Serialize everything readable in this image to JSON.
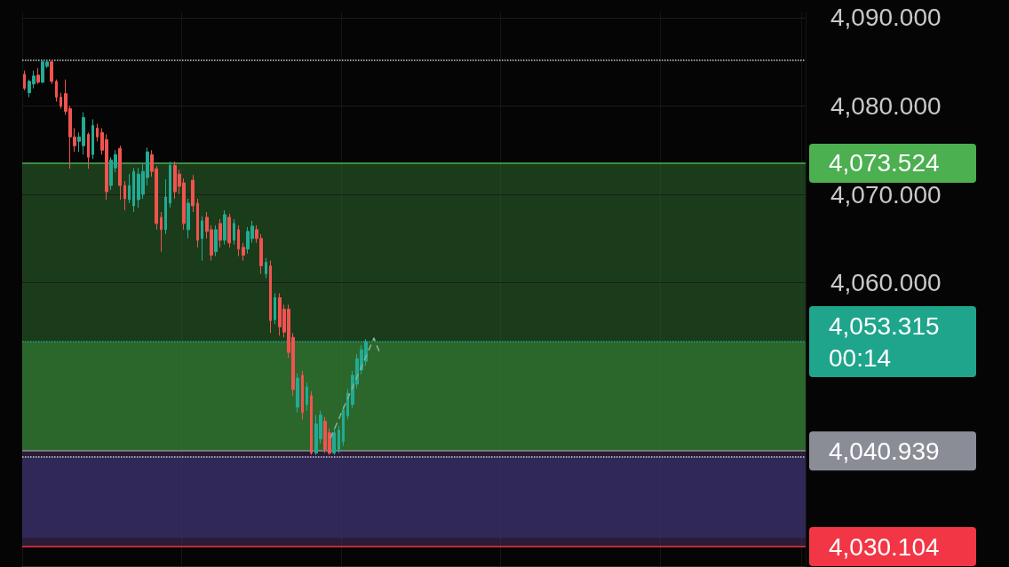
{
  "chart_data": {
    "type": "candlestick",
    "categories": [
      null,
      null,
      null,
      null,
      null,
      null,
      null,
      null,
      null,
      null,
      null,
      null,
      null,
      null,
      null,
      null,
      null,
      null,
      null,
      null,
      null,
      null,
      null,
      null,
      null,
      null,
      null,
      null,
      null,
      null,
      null,
      null,
      null,
      null,
      null,
      null,
      null,
      null,
      null,
      null,
      null,
      null,
      null,
      null,
      null,
      null,
      null,
      null,
      null,
      null,
      null,
      null,
      null,
      null,
      null,
      null,
      null,
      null,
      null,
      null,
      null,
      null,
      null,
      null,
      null,
      null,
      null,
      null,
      null,
      null,
      null,
      null,
      null,
      null,
      null,
      null,
      null,
      null,
      null,
      null,
      null,
      null,
      null,
      null,
      null,
      null,
      null,
      null,
      null,
      null,
      null,
      null,
      null,
      null,
      null,
      null,
      null,
      null,
      null,
      null,
      null,
      null,
      null,
      null,
      null,
      null,
      null,
      null,
      null,
      null,
      null,
      null,
      null,
      null,
      null,
      null,
      null,
      null,
      null,
      null,
      null,
      null,
      null,
      null,
      null,
      null,
      null,
      null,
      null,
      null,
      null,
      null,
      null,
      null,
      null,
      null,
      null,
      null,
      null,
      null,
      null,
      null,
      null,
      null,
      null,
      null,
      null,
      null,
      null,
      null,
      null,
      null,
      null,
      null,
      null,
      null,
      null,
      null,
      null,
      null,
      null,
      null,
      null,
      null,
      null,
      null,
      null,
      null,
      null,
      null,
      null,
      null
    ],
    "ohlc": [
      [
        4083.6,
        4084.0,
        4081.8,
        4082.0
      ],
      [
        4081.5,
        4083.0,
        4081.0,
        4082.8
      ],
      [
        4082.5,
        4084.0,
        4082.0,
        4083.4
      ],
      [
        4083.5,
        4084.3,
        4082.5,
        4082.7
      ],
      [
        4082.7,
        4085.2,
        4082.6,
        4085.0
      ],
      [
        4084.5,
        4085.2,
        4084.3,
        4085.0
      ],
      [
        4085.0,
        4085.2,
        4082.5,
        4082.8
      ],
      [
        4082.8,
        4083.0,
        4080.5,
        4081.0
      ],
      [
        4081.0,
        4081.5,
        4079.7,
        4080.0
      ],
      [
        4081.4,
        4083.0,
        4079.0,
        4079.4
      ],
      [
        4079.7,
        4080.0,
        4072.9,
        4076.5
      ],
      [
        4076.5,
        4077.5,
        4074.8,
        4075.5
      ],
      [
        4076.0,
        4077.0,
        4074.8,
        4076.5
      ],
      [
        4075.5,
        4079.3,
        4074.5,
        4078.7
      ],
      [
        4076.8,
        4077.0,
        4072.9,
        4074.2
      ],
      [
        4074.5,
        4078.5,
        4074.0,
        4077.8
      ],
      [
        4077.5,
        4078.0,
        4076.0,
        4076.5
      ],
      [
        4077.0,
        4077.5,
        4074.5,
        4075.0
      ],
      [
        4076.2,
        4076.8,
        4069.4,
        4070.3
      ],
      [
        4071.0,
        4074.2,
        4070.5,
        4073.9
      ],
      [
        4073.0,
        4075.0,
        4072.5,
        4074.5
      ],
      [
        4075.2,
        4075.5,
        4069.4,
        4071.0
      ],
      [
        4071.0,
        4071.5,
        4068.2,
        4069.5
      ],
      [
        4069.4,
        4072.3,
        4069.0,
        4071.0
      ],
      [
        4068.7,
        4073.0,
        4068.0,
        4072.6
      ],
      [
        4069.4,
        4073.0,
        4068.5,
        4072.3
      ],
      [
        4070.0,
        4073.5,
        4069.5,
        4072.6
      ],
      [
        4071.9,
        4075.3,
        4071.0,
        4074.8
      ],
      [
        4074.5,
        4075.0,
        4072.0,
        4072.6
      ],
      [
        4072.9,
        4073.2,
        4066.0,
        4066.7
      ],
      [
        4067.4,
        4068.0,
        4063.5,
        4066.0
      ],
      [
        4066.0,
        4071.7,
        4065.5,
        4069.7
      ],
      [
        4069.0,
        4073.7,
        4068.5,
        4073.3
      ],
      [
        4073.3,
        4073.7,
        4069.5,
        4070.3
      ],
      [
        4072.3,
        4072.8,
        4070.0,
        4070.9
      ],
      [
        4071.3,
        4071.8,
        4066.0,
        4066.7
      ],
      [
        4066.0,
        4069.5,
        4065.0,
        4069.0
      ],
      [
        4071.6,
        4072.2,
        4068.0,
        4068.7
      ],
      [
        4069.0,
        4069.5,
        4064.0,
        4064.8
      ],
      [
        4065.0,
        4067.5,
        4062.5,
        4067.0
      ],
      [
        4067.4,
        4068.0,
        4065.0,
        4065.8
      ],
      [
        4066.0,
        4066.5,
        4062.5,
        4063.1
      ],
      [
        4063.5,
        4066.5,
        4063.0,
        4066.0
      ],
      [
        4066.7,
        4067.2,
        4064.0,
        4064.8
      ],
      [
        4064.8,
        4068.2,
        4064.3,
        4067.7
      ],
      [
        4067.4,
        4067.8,
        4064.0,
        4064.5
      ],
      [
        4064.8,
        4067.2,
        4064.3,
        4066.7
      ],
      [
        4066.0,
        4066.5,
        4063.0,
        4063.8
      ],
      [
        4064.0,
        4064.5,
        4062.5,
        4063.1
      ],
      [
        4063.8,
        4066.3,
        4063.3,
        4065.8
      ],
      [
        4065.0,
        4067.0,
        4064.5,
        4066.4
      ],
      [
        4066.0,
        4066.5,
        4064.5,
        4065.0
      ],
      [
        4065.0,
        4065.5,
        4061.0,
        4061.9
      ],
      [
        4061.0,
        4062.8,
        4060.5,
        4062.3
      ],
      [
        4061.9,
        4062.5,
        4054.3,
        4055.7
      ],
      [
        4055.8,
        4058.8,
        4055.3,
        4058.3
      ],
      [
        4058.3,
        4058.8,
        4054.0,
        4055.0
      ],
      [
        4057.0,
        4057.5,
        4053.8,
        4054.4
      ],
      [
        4057.0,
        4057.5,
        4051.5,
        4052.1
      ],
      [
        4053.8,
        4054.3,
        4047.2,
        4047.9
      ],
      [
        4045.9,
        4049.7,
        4045.3,
        4049.2
      ],
      [
        4049.5,
        4050.0,
        4044.5,
        4045.3
      ],
      [
        4046.2,
        4048.7,
        4045.5,
        4048.2
      ],
      [
        4047.2,
        4047.7,
        4040.5,
        4040.7
      ],
      [
        4040.7,
        4045.0,
        4040.5,
        4044.0
      ],
      [
        4042.3,
        4045.5,
        4041.8,
        4045.0
      ],
      [
        4044.3,
        4044.8,
        4040.7,
        4041.1
      ],
      [
        4043.0,
        4043.5,
        4040.5,
        4040.7
      ],
      [
        4040.7,
        4043.5,
        4040.5,
        4043.0
      ],
      [
        4041.1,
        4043.8,
        4040.7,
        4043.3
      ],
      [
        4042.0,
        4046.0,
        4041.5,
        4045.6
      ],
      [
        4044.9,
        4048.0,
        4044.5,
        4047.5
      ],
      [
        4046.2,
        4050.0,
        4045.8,
        4049.5
      ],
      [
        4048.5,
        4051.9,
        4048.0,
        4051.4
      ],
      [
        4050.1,
        4052.9,
        4049.6,
        4052.4
      ],
      [
        4051.1,
        4053.6,
        4050.6,
        4053.315
      ],
      null,
      null,
      null,
      null,
      null,
      null,
      null,
      null,
      null,
      null,
      null,
      null,
      null,
      null,
      null,
      null,
      null,
      null,
      null,
      null,
      null,
      null,
      null,
      null,
      null,
      null,
      null,
      null,
      null,
      null,
      null,
      null,
      null,
      null,
      null,
      null,
      null,
      null,
      null,
      null,
      null,
      null,
      null,
      null,
      null,
      null,
      null,
      null,
      null,
      null,
      null,
      null,
      null,
      null,
      null,
      null,
      null,
      null,
      null,
      null,
      null,
      null,
      null,
      null,
      null,
      null,
      null,
      null,
      null,
      null,
      null,
      null,
      null,
      null,
      null,
      null,
      null,
      null,
      null,
      null,
      null,
      null,
      null,
      null,
      null,
      null,
      null,
      null,
      null,
      null,
      null,
      null,
      null,
      null,
      null,
      null
    ],
    "colors": [
      "#f05350",
      "#22ab94",
      "#22ab94",
      "#f05350",
      "#22ab94",
      "#22ab94",
      "#f05350",
      "#f05350",
      "#f05350",
      "#f05350",
      "#f05350",
      "#f05350",
      "#22ab94",
      "#22ab94",
      "#f05350",
      "#22ab94",
      "#f05350",
      "#f05350",
      "#f05350",
      "#22ab94",
      "#22ab94",
      "#f05350",
      "#f05350",
      "#22ab94",
      "#22ab94",
      "#22ab94",
      "#22ab94",
      "#22ab94",
      "#f05350",
      "#f05350",
      "#f05350",
      "#22ab94",
      "#22ab94",
      "#f05350",
      "#f05350",
      "#f05350",
      "#22ab94",
      "#f05350",
      "#f05350",
      "#22ab94",
      "#f05350",
      "#f05350",
      "#22ab94",
      "#f05350",
      "#22ab94",
      "#f05350",
      "#22ab94",
      "#f05350",
      "#f05350",
      "#22ab94",
      "#22ab94",
      "#f05350",
      "#f05350",
      "#22ab94",
      "#f05350",
      "#22ab94",
      "#f05350",
      "#f05350",
      "#f05350",
      "#f05350",
      "#22ab94",
      "#f05350",
      "#22ab94",
      "#f05350",
      "#22ab94",
      "#22ab94",
      "#f05350",
      "#f05350",
      "#22ab94",
      "#22ab94",
      "#22ab94",
      "#22ab94",
      "#22ab94",
      "#22ab94",
      "#22ab94",
      "#22ab94",
      null,
      null,
      null,
      null,
      null,
      null,
      null,
      null,
      null,
      null,
      null,
      null,
      null,
      null,
      null,
      null,
      null,
      null,
      null,
      null,
      null,
      null,
      null,
      null,
      null,
      null,
      null,
      null,
      null,
      null,
      null,
      null,
      null,
      null,
      null,
      null,
      null,
      null,
      null,
      null,
      null,
      null,
      null,
      null,
      null,
      null,
      null,
      null,
      null,
      null,
      null,
      null,
      null,
      null,
      null,
      null,
      null,
      null,
      null,
      null,
      null,
      null,
      null,
      null,
      null,
      null,
      null,
      null,
      null,
      null,
      null,
      null,
      null,
      null,
      null,
      null,
      null,
      null,
      null,
      null,
      null,
      null,
      null,
      null,
      null,
      null,
      null,
      null,
      null,
      null,
      null,
      null,
      null,
      null,
      null,
      null
    ],
    "ylim": [
      4027.8,
      4090.6
    ],
    "yticks": [
      {
        "value": 4060,
        "label": "4,060.000"
      },
      {
        "value": 4070,
        "label": "4,070.000"
      },
      {
        "value": 4080,
        "label": "4,080.000"
      },
      {
        "value": 4090,
        "label": "4,090.000"
      }
    ],
    "tick_labels": "y",
    "grid": true,
    "bands": [
      {
        "axis": "y",
        "from": 4040.939,
        "to": 4073.524,
        "color": "#2c6a2c"
      },
      {
        "axis": "y",
        "from": 4040.939,
        "to": 4053.315,
        "color": "#3a8a3a"
      },
      {
        "axis": "y",
        "from": 4031.1,
        "to": 4040.3,
        "color": "#1a3a90"
      },
      {
        "axis": "y",
        "from": 4030.104,
        "to": 4040.939,
        "color": "#4a2d5d"
      }
    ],
    "ref_lines": [
      {
        "axis": "y",
        "value": 4085.2,
        "color": "#cfcfcf",
        "line_style": "dotted"
      },
      {
        "axis": "y",
        "value": 4073.524,
        "label": "4,073.524",
        "color": "#4caf50",
        "line_style": "solid"
      },
      {
        "axis": "y",
        "value": 4053.315,
        "label": "4,053.315",
        "color": "#1fa58c",
        "line_style": "dotted"
      },
      {
        "axis": "y",
        "value": 4040.939,
        "label": "4,040.939",
        "color": "#8a8d96",
        "line_style": "solid"
      },
      {
        "axis": "y",
        "value": 4040.3,
        "color": "#cfcfcf",
        "line_style": "dotted"
      },
      {
        "axis": "y",
        "value": 4030.104,
        "label": "4,030.104",
        "color": "#f23645",
        "line_style": "solid"
      }
    ],
    "annotations": [
      "00:14"
    ]
  }
}
